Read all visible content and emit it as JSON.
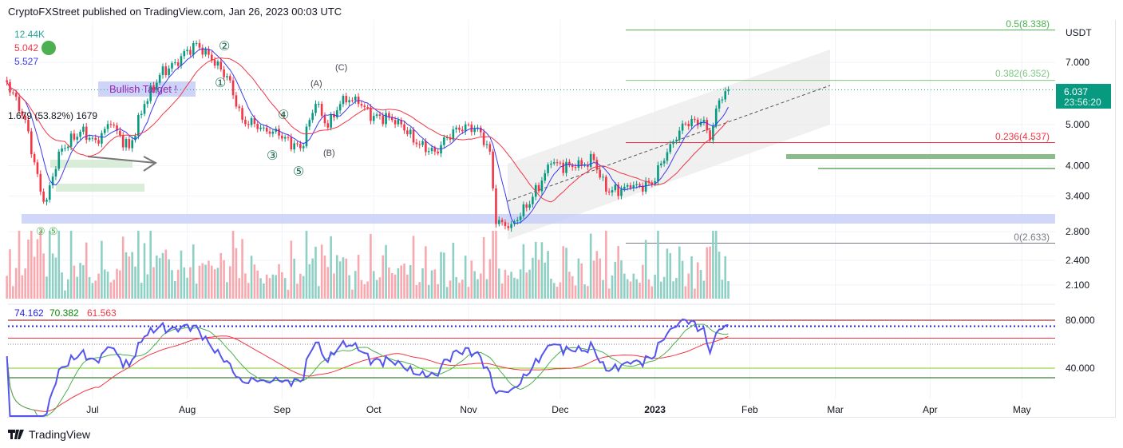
{
  "header": {
    "published": "CryptoFXStreet published on TradingView.com, Jan 26, 2023 00:03 UTC"
  },
  "legend": {
    "volume": "12.44K",
    "ma_slow": "5.042",
    "ma_fast": "5.527"
  },
  "rsi_legend": {
    "rsi": "74.162",
    "rsi_ma": "70.382",
    "rsi_ma_long": "61.563"
  },
  "price_tag": {
    "price": "6.037",
    "countdown": "23:56:20"
  },
  "colors": {
    "up": "#089981",
    "down": "#f23645",
    "ma_fast": "#3a3af0",
    "ma_slow": "#f23645",
    "tag": "#089981"
  },
  "annotations": {
    "bullish_target": "Bullish Target !",
    "measure": "1.679 (53.82%) 1679",
    "waves": [
      "①",
      "②",
      "③",
      "④",
      "⑤"
    ],
    "abc": [
      "(A)",
      "(B)",
      "(C)"
    ],
    "early_waves": [
      "③",
      "⑤"
    ]
  },
  "brand": "TradingView",
  "chart_data": {
    "type": "candlestick",
    "title": "",
    "currency": "USDT",
    "y_scale": "log",
    "ylim": [
      2.0,
      8.6
    ],
    "y_ticks": [
      "7.000",
      "5.000",
      "4.000",
      "3.400",
      "2.800",
      "2.400",
      "2.100"
    ],
    "x_ticks": [
      "Jul",
      "Aug",
      "Sep",
      "Oct",
      "Nov",
      "Dec",
      "2023",
      "Feb",
      "Mar",
      "Apr",
      "May"
    ],
    "x_tick_days": [
      30,
      61,
      92,
      122,
      153,
      183,
      214,
      245,
      273,
      304,
      334
    ],
    "day_origin": "2022-06-01",
    "close_waypoints": [
      [
        2,
        6.29
      ],
      [
        8,
        5.13
      ],
      [
        13,
        3.48
      ],
      [
        15,
        3.33
      ],
      [
        19,
        4.32
      ],
      [
        26,
        4.81
      ],
      [
        31,
        4.6
      ],
      [
        36,
        5.0
      ],
      [
        42,
        4.4
      ],
      [
        47,
        5.59
      ],
      [
        52,
        6.54
      ],
      [
        57,
        7.0
      ],
      [
        64,
        7.77
      ],
      [
        69,
        7.09
      ],
      [
        74,
        6.5
      ],
      [
        79,
        5.13
      ],
      [
        86,
        4.92
      ],
      [
        91,
        4.71
      ],
      [
        98,
        4.4
      ],
      [
        103,
        5.59
      ],
      [
        107,
        4.92
      ],
      [
        112,
        5.84
      ],
      [
        117,
        5.59
      ],
      [
        122,
        5.24
      ],
      [
        130,
        5.13
      ],
      [
        136,
        4.5
      ],
      [
        142,
        4.32
      ],
      [
        149,
        4.92
      ],
      [
        156,
        4.92
      ],
      [
        160,
        4.32
      ],
      [
        162,
        2.92
      ],
      [
        167,
        2.92
      ],
      [
        172,
        3.19
      ],
      [
        180,
        4.05
      ],
      [
        188,
        3.96
      ],
      [
        194,
        4.13
      ],
      [
        198,
        3.48
      ],
      [
        206,
        3.55
      ],
      [
        213,
        3.63
      ],
      [
        219,
        4.5
      ],
      [
        224,
        5.02
      ],
      [
        230,
        5.13
      ],
      [
        232,
        4.6
      ],
      [
        235,
        5.7
      ],
      [
        238,
        6.04
      ]
    ],
    "fib_levels": [
      {
        "label": "0.5(8.338)",
        "price": 8.338,
        "color": "#4caf50"
      },
      {
        "label": "0.382(6.352)",
        "price": 6.352,
        "color": "#81c784"
      },
      {
        "label": "0.236(4.537)",
        "price": 4.537,
        "color": "#f23645"
      },
      {
        "label": "0(2.633)",
        "price": 2.633,
        "color": "#787b86"
      }
    ],
    "rsi": {
      "y_ticks": [
        "80.000",
        "40.000"
      ],
      "levels": [
        80,
        75,
        65,
        60,
        40,
        32
      ]
    }
  }
}
